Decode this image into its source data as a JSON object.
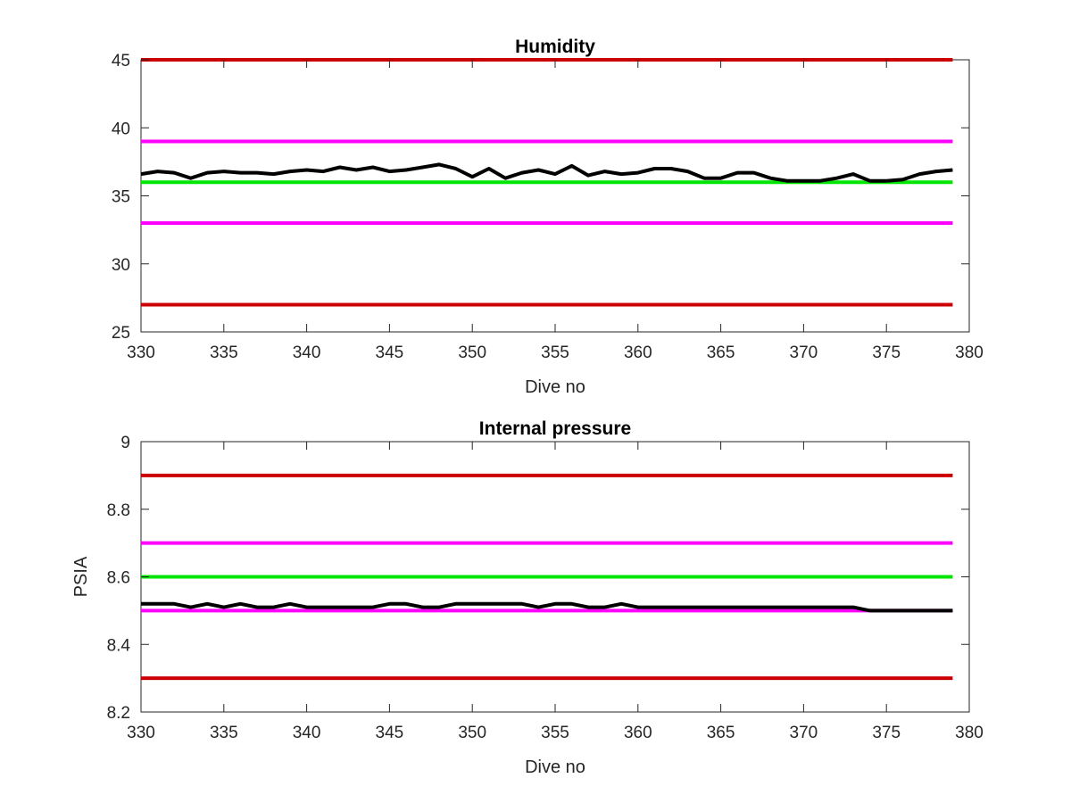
{
  "chart_data": [
    {
      "type": "line",
      "title": "Humidity",
      "xlabel": "Dive no",
      "ylabel": "",
      "xlim": [
        330,
        380
      ],
      "ylim": [
        25,
        45
      ],
      "xticks": [
        "330",
        "335",
        "340",
        "345",
        "350",
        "355",
        "360",
        "365",
        "370",
        "375",
        "380"
      ],
      "yticks": [
        "25",
        "30",
        "35",
        "40",
        "45"
      ],
      "grid": false,
      "colors": {
        "data": "#000000",
        "limit": "#cc0000",
        "warning": "#ff00ff",
        "nominal": "#00e600"
      },
      "hlines": [
        {
          "y": 45,
          "color": "#cc0000"
        },
        {
          "y": 39,
          "color": "#ff00ff"
        },
        {
          "y": 36,
          "color": "#00e600"
        },
        {
          "y": 33,
          "color": "#ff00ff"
        },
        {
          "y": 27,
          "color": "#cc0000"
        }
      ],
      "series": [
        {
          "color": "#000000",
          "x": [
            330,
            331,
            332,
            333,
            334,
            335,
            336,
            337,
            338,
            339,
            340,
            341,
            342,
            343,
            344,
            345,
            346,
            347,
            348,
            349,
            350,
            351,
            352,
            353,
            354,
            355,
            356,
            357,
            358,
            359,
            360,
            361,
            362,
            363,
            364,
            365,
            366,
            367,
            368,
            369,
            370,
            371,
            372,
            373,
            374,
            375,
            376,
            377,
            378,
            379
          ],
          "y": [
            36.6,
            36.8,
            36.7,
            36.3,
            36.7,
            36.8,
            36.7,
            36.7,
            36.6,
            36.8,
            36.9,
            36.8,
            37.1,
            36.9,
            37.1,
            36.8,
            36.9,
            37.1,
            37.3,
            37.0,
            36.4,
            37.0,
            36.3,
            36.7,
            36.9,
            36.6,
            37.2,
            36.5,
            36.8,
            36.6,
            36.7,
            37.0,
            37.0,
            36.8,
            36.3,
            36.3,
            36.7,
            36.7,
            36.3,
            36.1,
            36.1,
            36.1,
            36.3,
            36.6,
            36.1,
            36.1,
            36.2,
            36.6,
            36.8,
            36.9
          ]
        }
      ]
    },
    {
      "type": "line",
      "title": "Internal pressure",
      "xlabel": "Dive no",
      "ylabel": "PSIA",
      "xlim": [
        330,
        380
      ],
      "ylim": [
        8.2,
        9
      ],
      "xticks": [
        "330",
        "335",
        "340",
        "345",
        "350",
        "355",
        "360",
        "365",
        "370",
        "375",
        "380"
      ],
      "yticks": [
        "8.2",
        "8.4",
        "8.6",
        "8.8",
        "9"
      ],
      "grid": false,
      "colors": {
        "data": "#000000",
        "limit": "#cc0000",
        "warning": "#ff00ff",
        "nominal": "#00e600"
      },
      "hlines": [
        {
          "y": 8.9,
          "color": "#cc0000"
        },
        {
          "y": 8.7,
          "color": "#ff00ff"
        },
        {
          "y": 8.6,
          "color": "#00e600"
        },
        {
          "y": 8.5,
          "color": "#ff00ff"
        },
        {
          "y": 8.3,
          "color": "#cc0000"
        }
      ],
      "series": [
        {
          "color": "#000000",
          "x": [
            330,
            331,
            332,
            333,
            334,
            335,
            336,
            337,
            338,
            339,
            340,
            341,
            342,
            343,
            344,
            345,
            346,
            347,
            348,
            349,
            350,
            351,
            352,
            353,
            354,
            355,
            356,
            357,
            358,
            359,
            360,
            361,
            362,
            363,
            364,
            365,
            366,
            367,
            368,
            369,
            370,
            371,
            372,
            373,
            374,
            375,
            376,
            377,
            378,
            379
          ],
          "y": [
            8.52,
            8.52,
            8.52,
            8.51,
            8.52,
            8.51,
            8.52,
            8.51,
            8.51,
            8.52,
            8.51,
            8.51,
            8.51,
            8.51,
            8.51,
            8.52,
            8.52,
            8.51,
            8.51,
            8.52,
            8.52,
            8.52,
            8.52,
            8.52,
            8.51,
            8.52,
            8.52,
            8.51,
            8.51,
            8.52,
            8.51,
            8.51,
            8.51,
            8.51,
            8.51,
            8.51,
            8.51,
            8.51,
            8.51,
            8.51,
            8.51,
            8.51,
            8.51,
            8.51,
            8.5,
            8.5,
            8.5,
            8.5,
            8.5,
            8.5
          ]
        }
      ]
    }
  ]
}
